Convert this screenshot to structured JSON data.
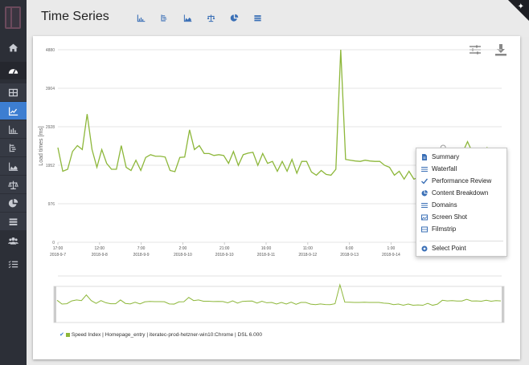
{
  "header": {
    "title": "Time Series",
    "view_icons": [
      "line-chart-icon",
      "waterfall-icon",
      "area-chart-icon",
      "scale-icon",
      "pie-chart-icon",
      "list-icon"
    ]
  },
  "sidebar": {
    "items": [
      {
        "name": "home",
        "icon": "home-icon"
      },
      {
        "name": "dashboard",
        "icon": "dashboard-icon"
      },
      {
        "name": "table",
        "icon": "table-icon"
      },
      {
        "name": "time-series",
        "icon": "line-chart-icon",
        "active": true
      },
      {
        "name": "bar-chart",
        "icon": "bar-chart-icon"
      },
      {
        "name": "waterfall",
        "icon": "waterfall-icon"
      },
      {
        "name": "area-chart",
        "icon": "area-chart-icon"
      },
      {
        "name": "compare",
        "icon": "scale-icon"
      },
      {
        "name": "pie-chart",
        "icon": "pie-chart-icon"
      },
      {
        "name": "list",
        "icon": "list-icon"
      },
      {
        "name": "users",
        "icon": "users-icon"
      },
      {
        "name": "checklist",
        "icon": "checklist-icon"
      }
    ]
  },
  "toolbar": {
    "settings_icon": "sliders-icon",
    "download_icon": "download-icon"
  },
  "context_menu": {
    "items": [
      {
        "label": "Summary",
        "icon": "document-icon"
      },
      {
        "label": "Waterfall",
        "icon": "bars-icon"
      },
      {
        "label": "Performance Review",
        "icon": "check-icon"
      },
      {
        "label": "Content Breakdown",
        "icon": "pie-chart-icon"
      },
      {
        "label": "Domains",
        "icon": "list-icon"
      },
      {
        "label": "Screen Shot",
        "icon": "image-icon"
      },
      {
        "label": "Filmstrip",
        "icon": "film-icon"
      }
    ],
    "select_point": {
      "label": "Select Point",
      "icon": "target-icon"
    }
  },
  "legend": {
    "label": "Speed Index | Homepage_entry | iteratec-prod-hetzner-win10:Chrome | DSL 6.000",
    "color": "#8db73a"
  },
  "chart_data": {
    "type": "line",
    "title": "Time Series",
    "xlabel": "",
    "ylabel": "Load times [ms]",
    "ylim": [
      0,
      4880
    ],
    "yticks": [
      0,
      976,
      1952,
      2928,
      3904,
      4880
    ],
    "grid": true,
    "legend_position": "bottom",
    "xticks": [
      {
        "time": "17:00",
        "date": "2018-9-7"
      },
      {
        "time": "12:00",
        "date": "2018-9-8"
      },
      {
        "time": "7:00",
        "date": "2018-9-9"
      },
      {
        "time": "2:00",
        "date": "2018-9-10"
      },
      {
        "time": "21:00",
        "date": "2018-9-10"
      },
      {
        "time": "16:00",
        "date": "2018-9-11"
      },
      {
        "time": "11:00",
        "date": "2018-9-12"
      },
      {
        "time": "6:00",
        "date": "2018-9-13"
      },
      {
        "time": "1:00",
        "date": "2018-9-14"
      }
    ],
    "series": [
      {
        "name": "Speed Index | Homepage_entry | iteratec-prod-hetzner-win10:Chrome | DSL 6.000",
        "color": "#8db73a",
        "values": [
          2400,
          1800,
          1850,
          2300,
          2450,
          2350,
          3250,
          2350,
          1900,
          2350,
          2000,
          1850,
          1850,
          2450,
          1900,
          1820,
          2080,
          1820,
          2150,
          2220,
          2180,
          2180,
          2160,
          1820,
          1790,
          2150,
          2160,
          2850,
          2350,
          2450,
          2250,
          2250,
          2200,
          2220,
          2200,
          2000,
          2300,
          1950,
          2220,
          2260,
          2280,
          1950,
          2250,
          2000,
          2050,
          1800,
          2050,
          1800,
          2100,
          1750,
          2050,
          2050,
          1780,
          1700,
          1820,
          1720,
          1700,
          1850,
          4880,
          2100,
          2080,
          2060,
          2050,
          2080,
          2060,
          2050,
          2050,
          1950,
          1900,
          1700,
          1800,
          1600,
          1800,
          1600,
          1650,
          1600,
          1900,
          1600,
          1780,
          2400,
          2300,
          2350,
          2280,
          2280,
          2550,
          2280,
          2300,
          2250,
          2400,
          2250,
          2350,
          2300
        ]
      }
    ]
  }
}
